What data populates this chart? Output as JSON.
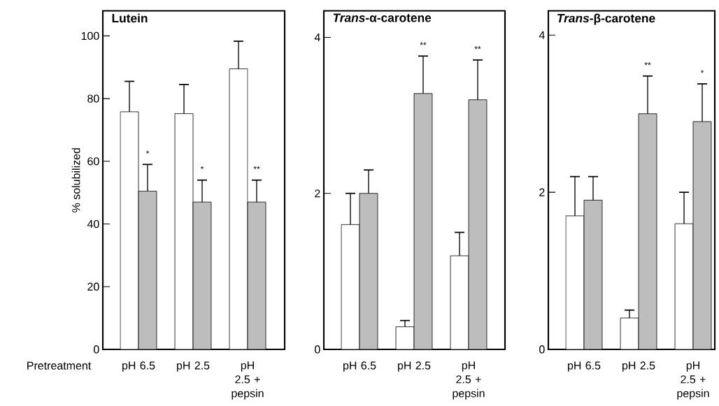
{
  "chart_data": [
    {
      "type": "bar",
      "title": "Lutein",
      "xlabel": "Pretreatment",
      "ylabel": "% solubilized",
      "categories": [
        "pH 6.5",
        "pH 2.5",
        "pH 2.5 + pepsin"
      ],
      "series": [
        {
          "color": "#ffffff",
          "values": [
            75.8,
            75.2,
            89.5
          ],
          "errors": [
            [
              75.8,
              85.5
            ],
            [
              75.2,
              84.5
            ],
            [
              89.5,
              98.3
            ]
          ]
        },
        {
          "color": "#bdbdbd",
          "values": [
            50.5,
            47,
            47
          ],
          "errors": [
            [
              50.5,
              59
            ],
            [
              47,
              54
            ],
            [
              47,
              54
            ]
          ]
        }
      ],
      "ylim": [
        0,
        108
      ],
      "yticks": [
        0,
        20,
        40,
        60,
        80,
        100
      ],
      "annotations": [
        "*",
        "*",
        "**"
      ]
    },
    {
      "type": "bar",
      "title": "*Trans*-α-carotene",
      "categories": [
        "pH 6.5",
        "pH 2.5",
        "pH 2.5 + pepsin"
      ],
      "series": [
        {
          "color": "#ffffff",
          "values": [
            1.6,
            0.29,
            1.2
          ],
          "errors": [
            [
              1.6,
              2.0
            ],
            [
              0.29,
              0.37
            ],
            [
              1.2,
              1.5
            ]
          ]
        },
        {
          "color": "#bdbdbd",
          "values": [
            2.0,
            3.28,
            3.2
          ],
          "errors": [
            [
              2.0,
              2.3
            ],
            [
              3.28,
              3.76
            ],
            [
              3.2,
              3.71
            ]
          ]
        }
      ],
      "ylim": [
        0,
        4.34
      ],
      "yticks": [
        0,
        2,
        4
      ],
      "annotations": [
        "**",
        "**"
      ]
    },
    {
      "type": "bar",
      "title": "*Trans*-β-carotene",
      "categories": [
        "pH 6.5",
        "pH 2.5",
        "pH 2.5 + pepsin"
      ],
      "series": [
        {
          "color": "#ffffff",
          "values": [
            1.7,
            0.4,
            1.6
          ],
          "errors": [
            [
              1.7,
              2.2
            ],
            [
              0.4,
              0.5
            ],
            [
              1.6,
              2.0
            ]
          ]
        },
        {
          "color": "#bdbdbd",
          "values": [
            1.9,
            3.0,
            2.9
          ],
          "errors": [
            [
              1.9,
              2.2
            ],
            [
              3.0,
              3.48
            ],
            [
              2.9,
              3.38
            ]
          ]
        }
      ],
      "ylim": [
        0,
        4.31
      ],
      "yticks": [
        0,
        2,
        4
      ],
      "annotations": [
        "**",
        "*"
      ]
    }
  ]
}
